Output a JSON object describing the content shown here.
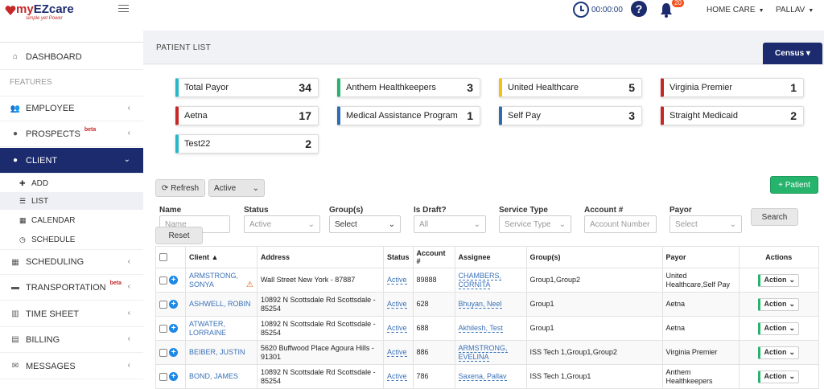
{
  "app": {
    "brand_my": "my",
    "brand_rest": "EZcare",
    "tagline": "simple yet Power"
  },
  "header": {
    "timer": "00:00:00",
    "help": "?",
    "bell_count": "20",
    "home_care": "HOME CARE",
    "user": "PALLAV"
  },
  "sidebar": {
    "dashboard": "DASHBOARD",
    "features": "FEATURES",
    "employee": "EMPLOYEE",
    "prospects": "PROSPECTS",
    "beta": "beta",
    "client": "CLIENT",
    "sub": {
      "add": "ADD",
      "list": "LIST",
      "calendar": "CALENDAR",
      "schedule": "SCHEDULE"
    },
    "scheduling": "SCHEDULING",
    "transportation": "TRANSPORTATION",
    "timesheet": "TIME SHEET",
    "billing": "BILLING",
    "messages": "MESSAGES"
  },
  "page": {
    "title": "PATIENT LIST",
    "census": "Census"
  },
  "cards": [
    {
      "name": "Total Payor",
      "value": "34",
      "color": "#29b6c9"
    },
    {
      "name": "Anthem Healthkeepers",
      "value": "3",
      "color": "#26b36b"
    },
    {
      "name": "United Healthcare",
      "value": "5",
      "color": "#f4c20d"
    },
    {
      "name": "Virginia Premier",
      "value": "1",
      "color": "#c62828"
    },
    {
      "name": "Aetna",
      "value": "17",
      "color": "#c62828"
    },
    {
      "name": "Medical Assistance Program",
      "value": "1",
      "color": "#2d6cb3"
    },
    {
      "name": "Self Pay",
      "value": "3",
      "color": "#2d6cb3"
    },
    {
      "name": "Straight Medicaid",
      "value": "2",
      "color": "#c62828"
    },
    {
      "name": "Test22",
      "value": "2",
      "color": "#29b6c9"
    }
  ],
  "toolbar": {
    "refresh": "Refresh",
    "active": "Active",
    "add_patient": "Patient",
    "search": "Search",
    "reset": "Reset"
  },
  "filters": {
    "name": {
      "label": "Name",
      "placeholder": "Name"
    },
    "status": {
      "label": "Status",
      "value": "Active"
    },
    "groups": {
      "label": "Group(s)",
      "value": "Select"
    },
    "draft": {
      "label": "Is Draft?",
      "value": "All"
    },
    "service": {
      "label": "Service Type",
      "value": "Service Type"
    },
    "account": {
      "label": "Account #",
      "placeholder": "Account Number"
    },
    "payor": {
      "label": "Payor",
      "value": "Select"
    }
  },
  "table": {
    "headers": {
      "client": "Client",
      "address": "Address",
      "status": "Status",
      "account": "Account #",
      "assignee": "Assignee",
      "groups": "Group(s)",
      "payor": "Payor",
      "actions": "Actions"
    },
    "action_label": "Action",
    "rows": [
      {
        "client": "ARMSTRONG, SONYA",
        "address": "Wall Street New York - 87887",
        "status": "Active",
        "account": "89888",
        "assignee": "CHAMBERS, CORNITA",
        "groups": "Group1,Group2",
        "payor": "United Healthcare,Self Pay"
      },
      {
        "client": "ASHWELL, ROBIN",
        "address": "10892 N Scottsdale Rd Scottsdale - 85254",
        "status": "Active",
        "account": "628",
        "assignee": "Bhuyan, Neel",
        "groups": "Group1",
        "payor": "Aetna"
      },
      {
        "client": "ATWATER, LORRAINE",
        "address": "10892 N Scottsdale Rd Scottsdale - 85254",
        "status": "Active",
        "account": "688",
        "assignee": "Akhilesh, Test",
        "groups": "Group1",
        "payor": "Aetna"
      },
      {
        "client": "BEIBER, JUSTIN",
        "address": "5620 Buffwood Place Agoura Hills - 91301",
        "status": "Active",
        "account": "886",
        "assignee": "ARMSTRONG, EVELINA",
        "groups": "ISS Tech 1,Group1,Group2",
        "payor": "Virginia Premier"
      },
      {
        "client": "BOND, JAMES",
        "address": "10892 N Scottsdale Rd Scottsdale - 85254",
        "status": "Active",
        "account": "786",
        "assignee": "Saxena, Pallav",
        "groups": "ISS Tech 1,Group1",
        "payor": "Anthem Healthkeepers"
      }
    ]
  }
}
